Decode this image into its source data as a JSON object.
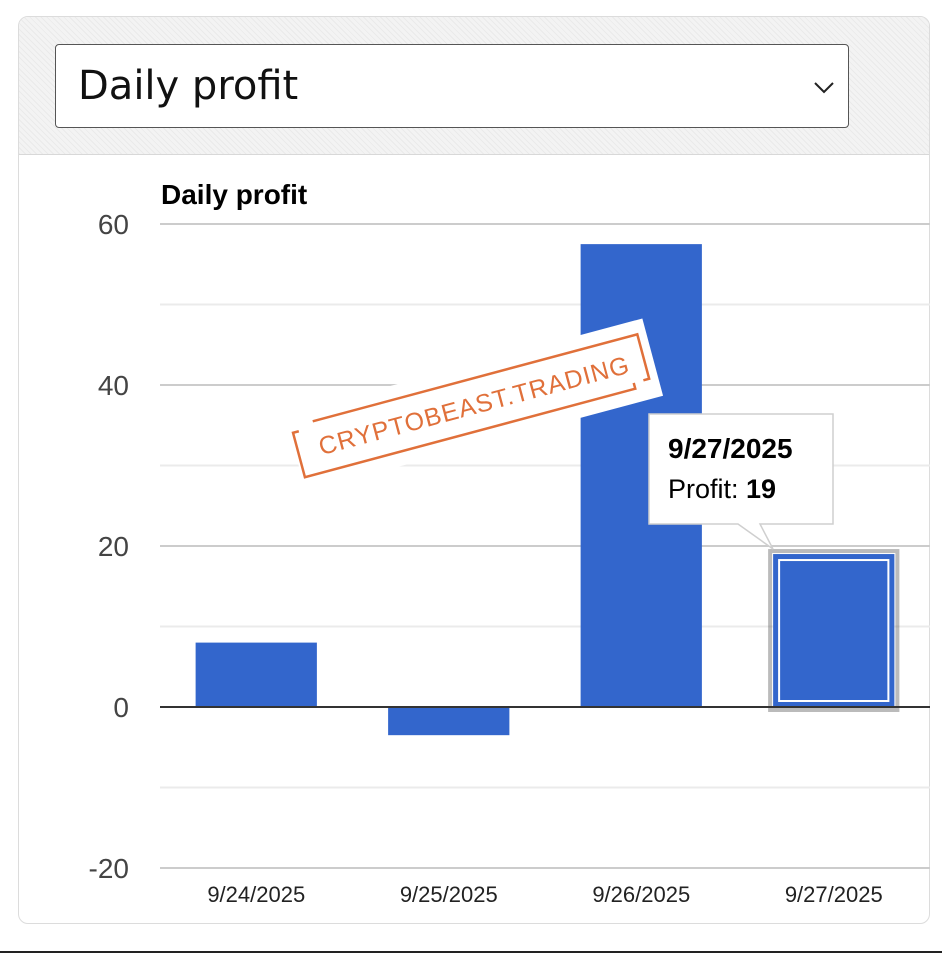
{
  "selector": {
    "value": "Daily profit",
    "icon": "chevron-down-icon"
  },
  "chart_data": {
    "type": "bar",
    "title": "Daily profit",
    "categories": [
      "9/24/2025",
      "9/25/2025",
      "9/26/2025",
      "9/27/2025"
    ],
    "series": [
      {
        "name": "Profit",
        "values": [
          8,
          -3.5,
          57.5,
          19
        ]
      }
    ],
    "ylim": [
      -20,
      60
    ],
    "yticks": [
      -20,
      0,
      20,
      40,
      60
    ],
    "grid": true,
    "bar_color": "#3366cc",
    "selected_index": 3
  },
  "tooltip": {
    "date": "9/27/2025",
    "label": "Profit: ",
    "value": "19"
  },
  "watermark": {
    "text": "CRYPTOBEAST.TRADING",
    "color": "#e0703a"
  }
}
